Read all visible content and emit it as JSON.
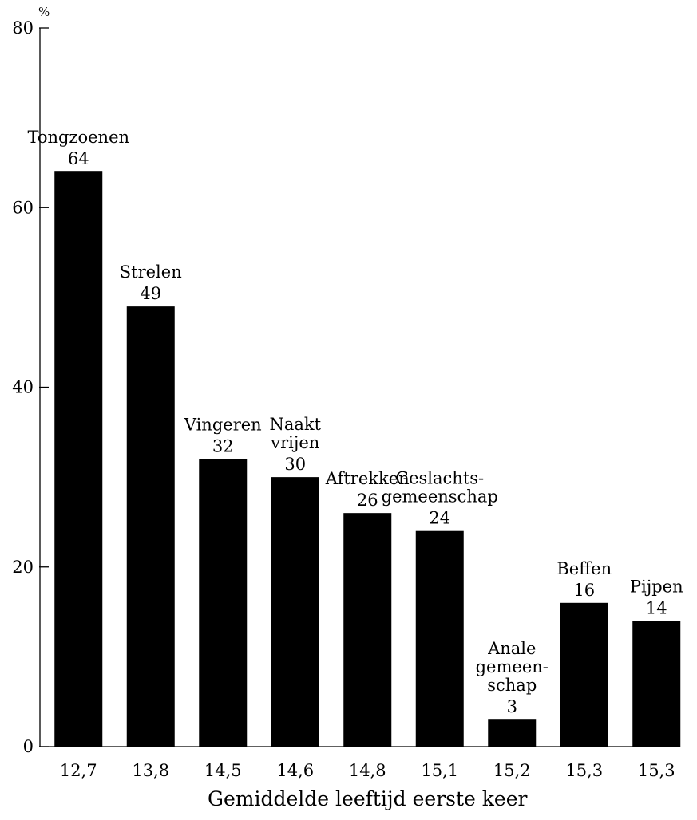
{
  "chart_data": {
    "type": "bar",
    "y_unit": "%",
    "xlabel": "Gemiddelde leeftijd eerste keer",
    "ylabel": "",
    "ylim": [
      0,
      80
    ],
    "yticks": [
      0,
      20,
      40,
      60,
      80
    ],
    "grid": false,
    "categories": [
      "12,7",
      "13,8",
      "14,5",
      "14,6",
      "14,8",
      "15,1",
      "15,2",
      "15,3",
      "15,3"
    ],
    "series": [
      {
        "values": [
          64,
          49,
          32,
          30,
          26,
          24,
          3,
          16,
          14
        ],
        "bar_labels": [
          [
            "Tongzoenen"
          ],
          [
            "Strelen"
          ],
          [
            "Vingeren"
          ],
          [
            "Naakt",
            "vrijen"
          ],
          [
            "Aftrekken"
          ],
          [
            "Geslachts-",
            "gemeenschap"
          ],
          [
            "Anale",
            "gemeen-",
            "schap"
          ],
          [
            "Beffen"
          ],
          [
            "Pijpen"
          ]
        ],
        "value_labels": [
          "64",
          "49",
          "32",
          "30",
          "26",
          "24",
          "3",
          "16",
          "14"
        ]
      }
    ],
    "colors": {
      "bar": "#000000",
      "axis": "#000000",
      "text": "#000000"
    }
  }
}
